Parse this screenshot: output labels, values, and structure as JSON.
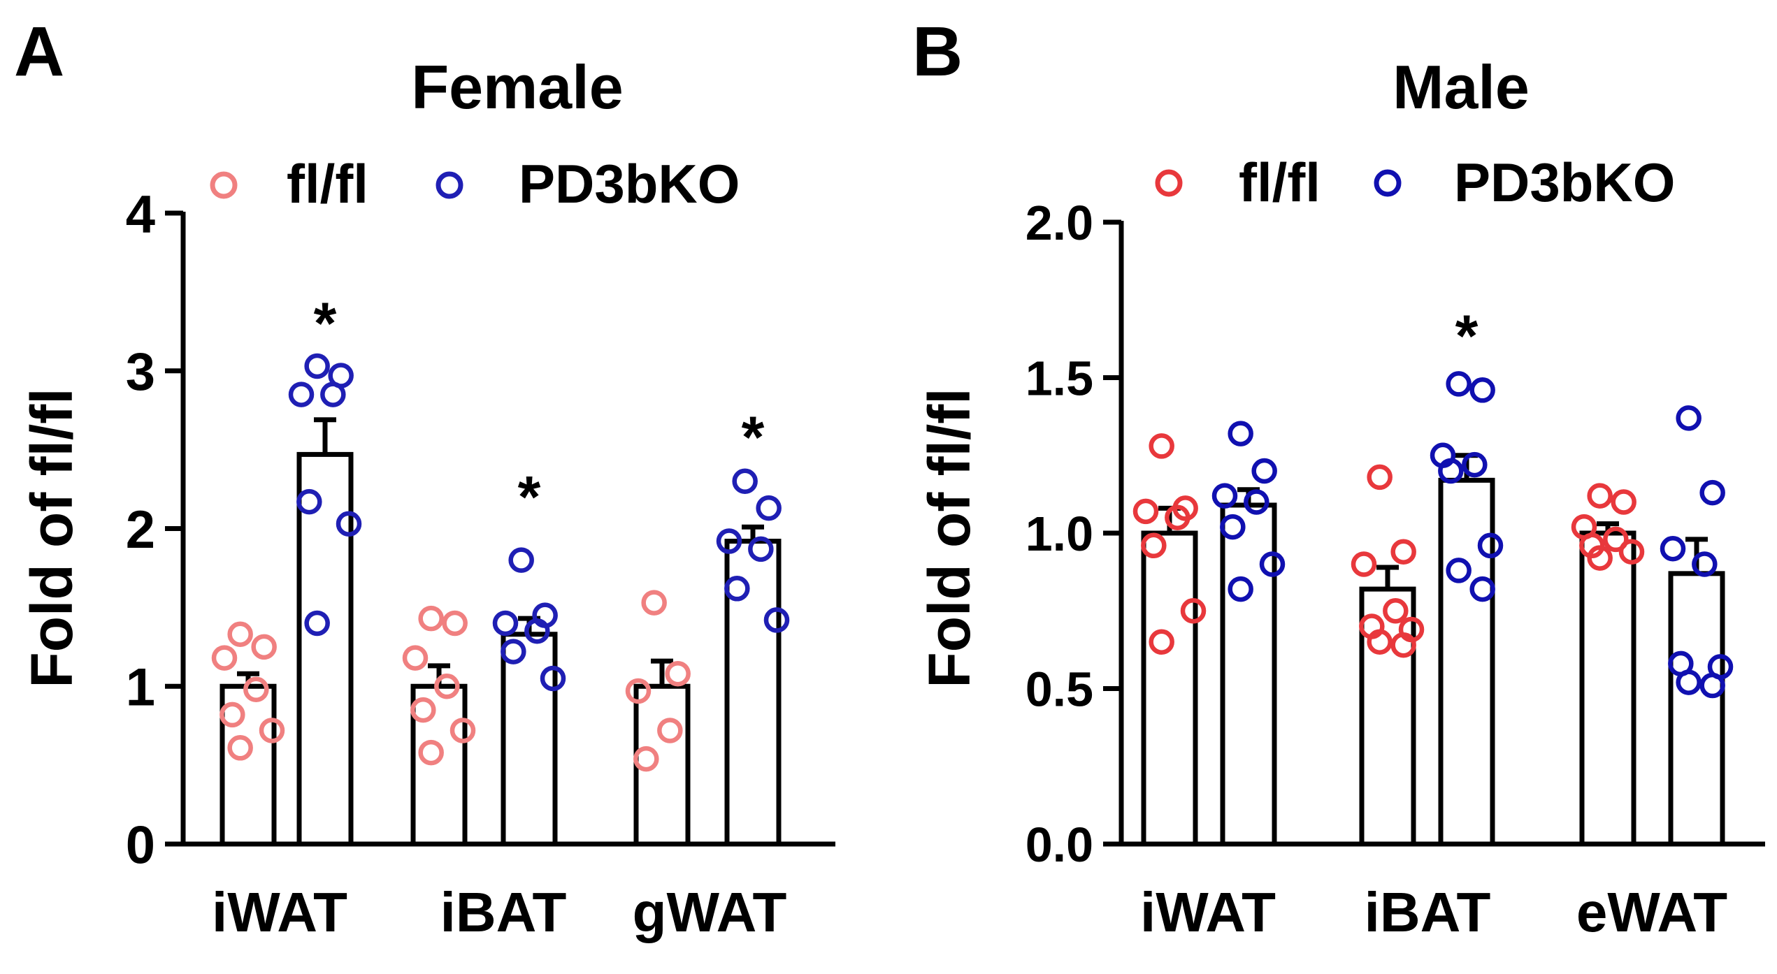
{
  "chart_data": [
    {
      "type": "bar",
      "panel_label": "A",
      "title": "Female",
      "ylabel": "Fold of fl/fl",
      "xlabel": "",
      "ylim": [
        0,
        4
      ],
      "yticks": [
        0,
        1,
        2,
        3,
        4
      ],
      "ytick_labels": [
        "0",
        "1",
        "2",
        "3",
        "4"
      ],
      "categories": [
        "iWAT",
        "iBAT",
        "gWAT"
      ],
      "legend": [
        {
          "name": "fl/fl",
          "color": "#F08080"
        },
        {
          "name": "PD3bKO",
          "color": "#1F1FB4"
        }
      ],
      "legend_position": "top",
      "series": [
        {
          "name": "fl/fl",
          "color": "#F08080",
          "values": [
            1.0,
            1.0,
            1.0
          ],
          "sem": [
            0.08,
            0.13,
            0.16
          ],
          "points": [
            [
              1.33,
              1.25,
              1.18,
              0.98,
              0.82,
              0.72,
              0.61
            ],
            [
              1.43,
              1.4,
              1.18,
              1.0,
              0.85,
              0.72,
              0.58
            ],
            [
              1.53,
              1.08,
              0.97,
              0.72,
              0.54
            ]
          ]
        },
        {
          "name": "PD3bKO",
          "color": "#1F1FB4",
          "values": [
            2.47,
            1.33,
            1.92
          ],
          "sem": [
            0.22,
            0.1,
            0.09
          ],
          "points": [
            [
              3.03,
              2.97,
              2.85,
              2.85,
              2.17,
              2.03,
              1.4
            ],
            [
              1.8,
              1.45,
              1.4,
              1.35,
              1.22,
              1.05
            ],
            [
              2.3,
              2.13,
              1.92,
              1.87,
              1.62,
              1.42
            ]
          ]
        }
      ],
      "significance": [
        {
          "category": "iWAT",
          "series": "PD3bKO",
          "label": "*",
          "y": 3.35
        },
        {
          "category": "iBAT",
          "series": "PD3bKO",
          "label": "*",
          "y": 2.25
        },
        {
          "category": "gWAT",
          "series": "PD3bKO",
          "label": "*",
          "y": 2.63
        }
      ]
    },
    {
      "type": "bar",
      "panel_label": "B",
      "title": "Male",
      "ylabel": "Fold of fl/fl",
      "xlabel": "",
      "ylim": [
        0,
        2
      ],
      "yticks": [
        0,
        0.5,
        1.0,
        1.5,
        2.0
      ],
      "ytick_labels": [
        "0.0",
        "0.5",
        "1.0",
        "1.5",
        "2.0"
      ],
      "categories": [
        "iWAT",
        "iBAT",
        "eWAT"
      ],
      "legend": [
        {
          "name": "fl/fl",
          "color": "#E8383C"
        },
        {
          "name": "PD3bKO",
          "color": "#1010B0"
        }
      ],
      "legend_position": "top",
      "series": [
        {
          "name": "fl/fl",
          "color": "#E8383C",
          "values": [
            1.0,
            0.82,
            1.0
          ],
          "sem": [
            0.08,
            0.07,
            0.03
          ],
          "points": [
            [
              1.28,
              1.08,
              1.07,
              1.05,
              0.96,
              0.75,
              0.65
            ],
            [
              1.18,
              0.94,
              0.9,
              0.75,
              0.7,
              0.69,
              0.65,
              0.64
            ],
            [
              1.12,
              1.1,
              1.02,
              0.98,
              0.96,
              0.94,
              0.92
            ]
          ]
        },
        {
          "name": "PD3bKO",
          "color": "#1010B0",
          "values": [
            1.09,
            1.17,
            0.87
          ],
          "sem": [
            0.05,
            0.08,
            0.11
          ],
          "points": [
            [
              1.32,
              1.2,
              1.12,
              1.1,
              1.02,
              0.9,
              0.82
            ],
            [
              1.48,
              1.46,
              1.25,
              1.22,
              1.2,
              0.96,
              0.88,
              0.82
            ],
            [
              1.37,
              1.13,
              0.95,
              0.9,
              0.58,
              0.57,
              0.52,
              0.51
            ]
          ]
        }
      ],
      "significance": [
        {
          "category": "iBAT",
          "series": "PD3bKO",
          "label": "*",
          "y": 1.66
        }
      ]
    }
  ]
}
